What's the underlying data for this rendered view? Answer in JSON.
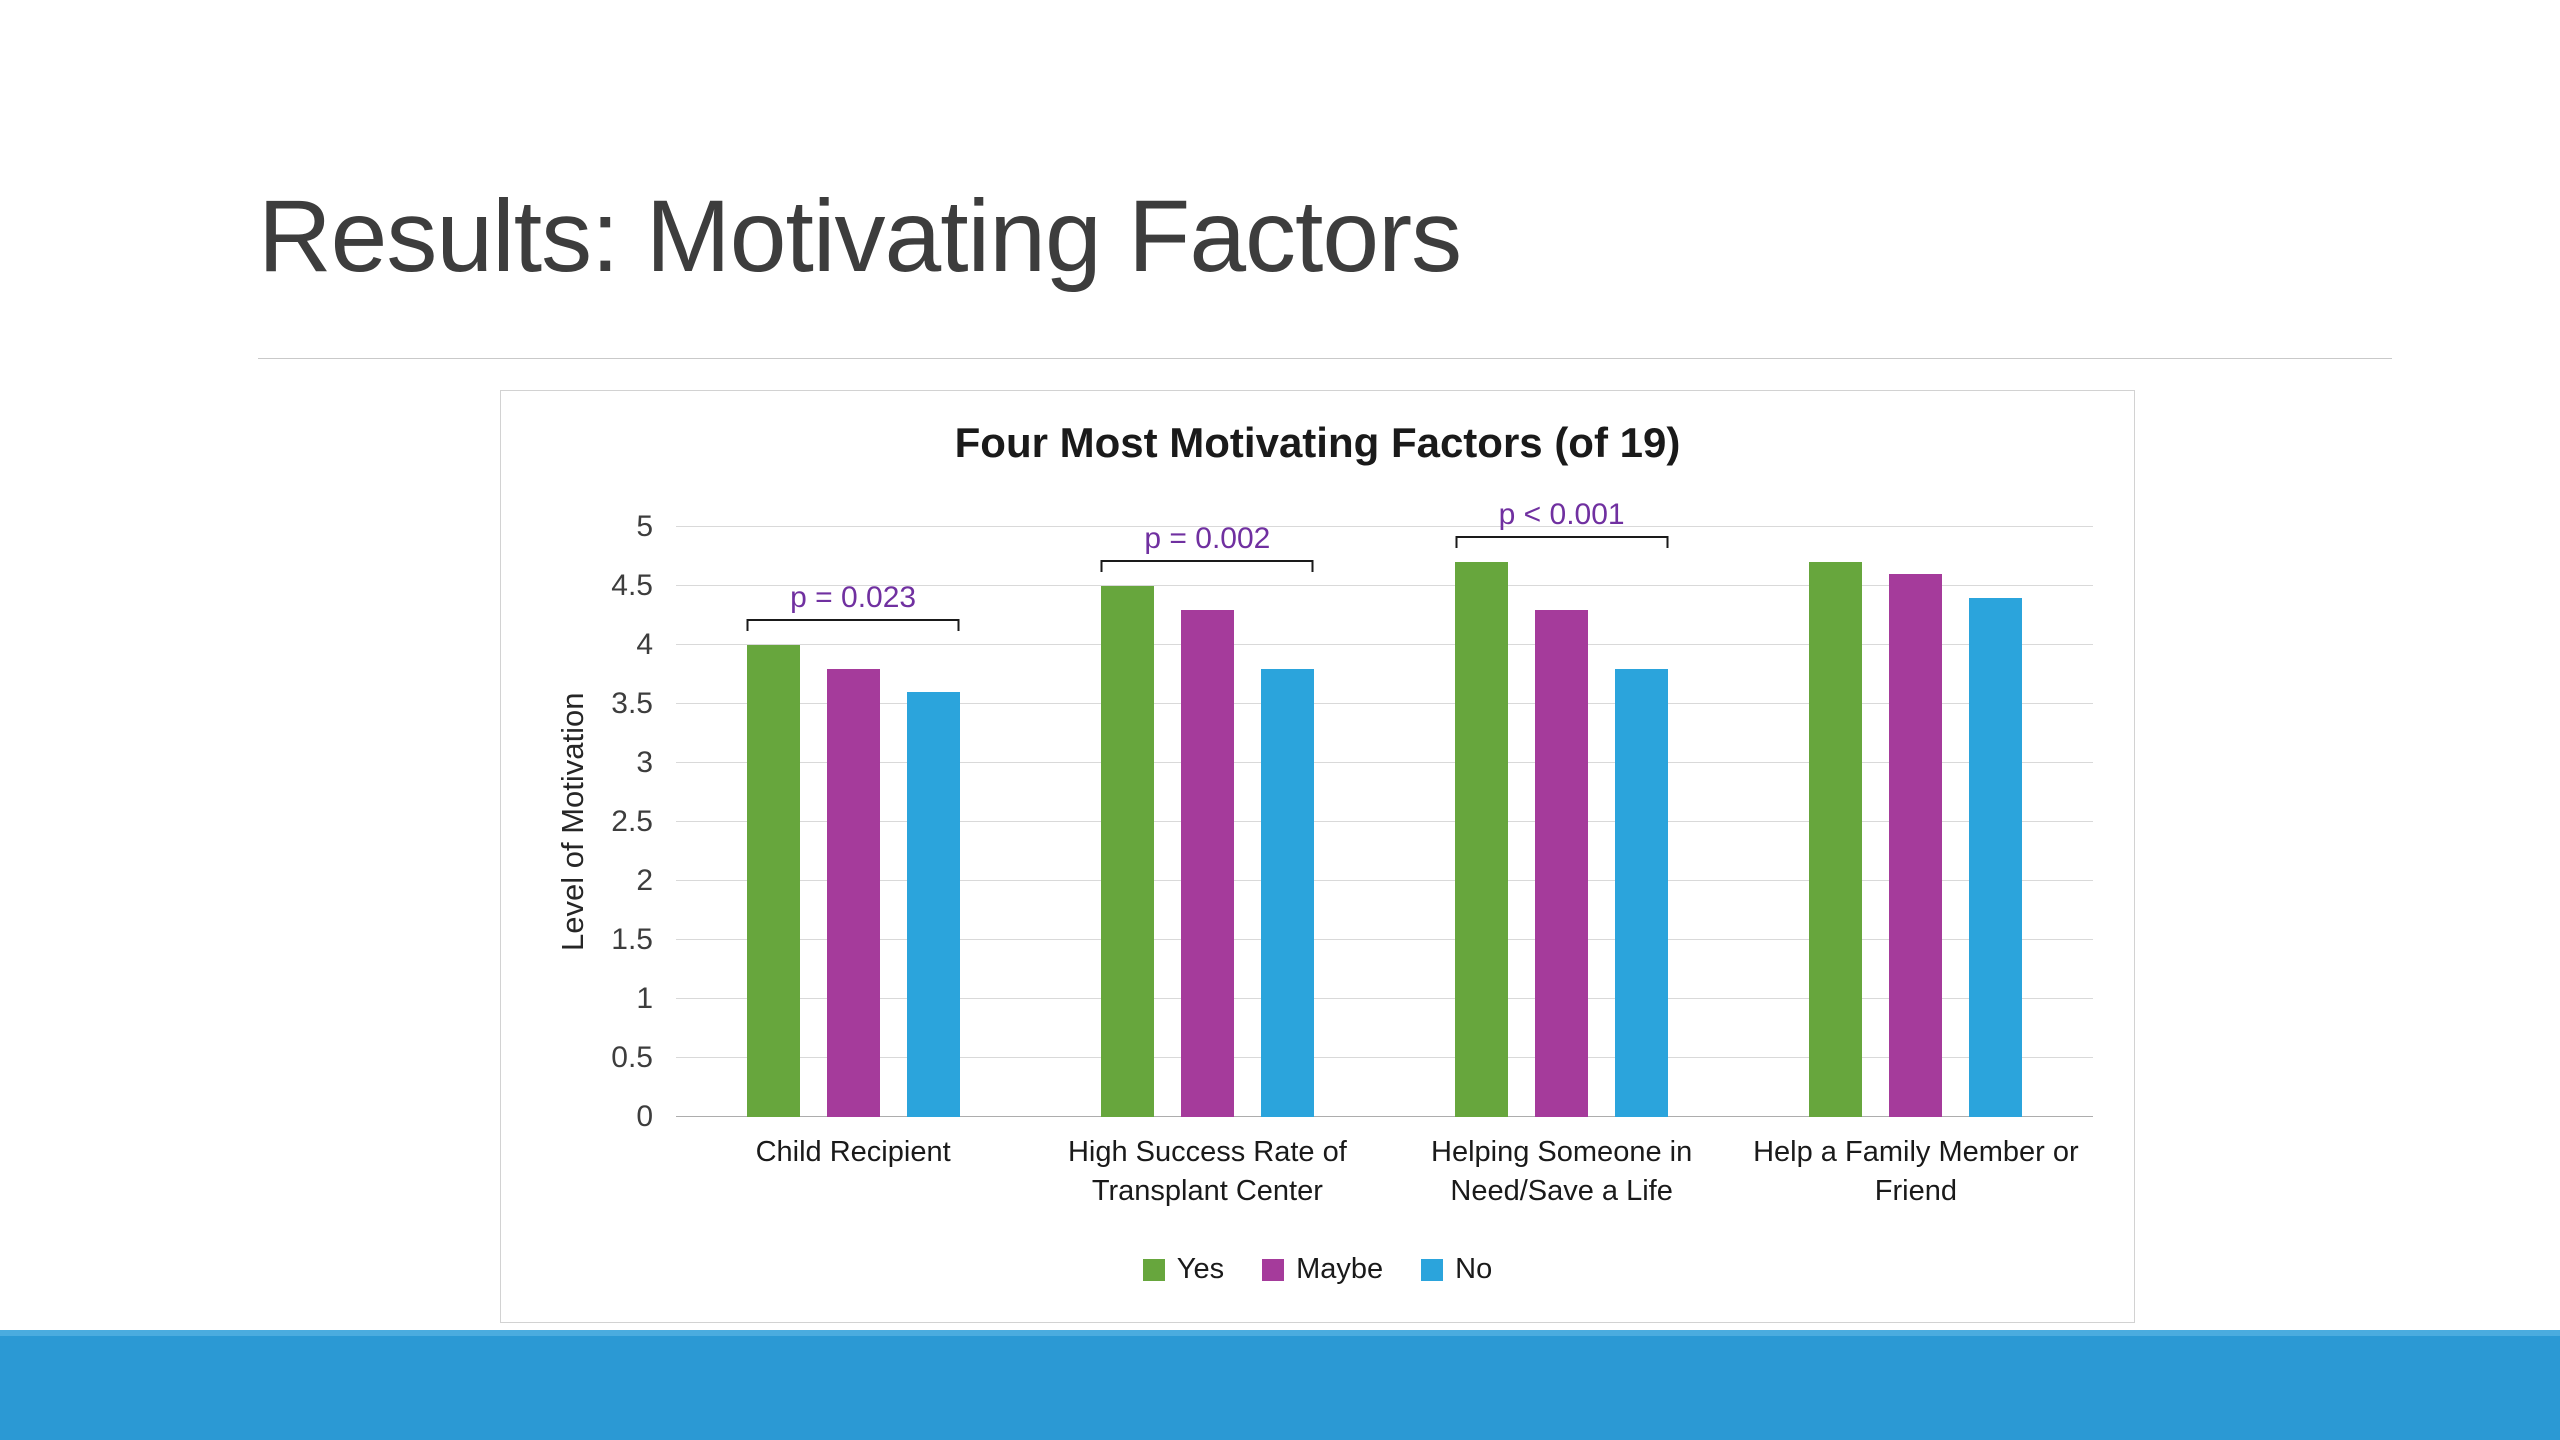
{
  "slide": {
    "title": "Results: Motivating Factors"
  },
  "chart_data": {
    "type": "bar",
    "title": "Four Most Motivating Factors (of 19)",
    "xlabel": "",
    "ylabel": "Level of Motivation",
    "ylim": [
      0,
      5
    ],
    "ytick_step": 0.5,
    "yticks": [
      "0",
      "0.5",
      "1",
      "1.5",
      "2",
      "2.5",
      "3",
      "3.5",
      "4",
      "4.5",
      "5"
    ],
    "grid": true,
    "legend_position": "bottom",
    "categories": [
      "Child Recipient",
      "High Success Rate of\nTransplant Center",
      "Helping Someone in\nNeed/Save a Life",
      "Help a Family Member or\nFriend"
    ],
    "series": [
      {
        "name": "Yes",
        "color": "#67A63D",
        "values": [
          4.0,
          4.5,
          4.7,
          4.7
        ]
      },
      {
        "name": "Maybe",
        "color": "#A53B9B",
        "values": [
          3.8,
          4.3,
          4.3,
          4.6
        ]
      },
      {
        "name": "No",
        "color": "#2BA4DC",
        "values": [
          3.6,
          3.8,
          3.8,
          4.4
        ]
      }
    ],
    "annotations": [
      {
        "group": 0,
        "label": "p = 0.023"
      },
      {
        "group": 1,
        "label": "p = 0.002"
      },
      {
        "group": 2,
        "label": "p < 0.001"
      }
    ]
  },
  "theme": {
    "p_value_color": "#7030A0",
    "footer_bar_top_color": "#4AACDF",
    "footer_bar_color": "#2B99D4",
    "gridline_color": "#d9d9d9"
  }
}
